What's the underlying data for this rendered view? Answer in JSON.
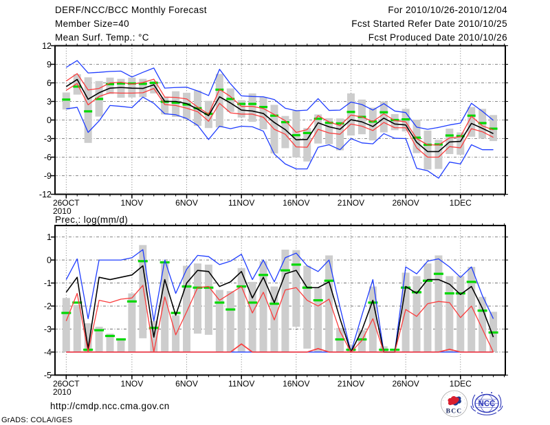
{
  "header": {
    "left": [
      "DERF/NCC/BCC Monthly Forecast",
      "Member Size=40",
      "Mean Surf. Temp.: °C"
    ],
    "right": [
      "For 2010/10/26-2010/12/04",
      "Fcst Started Refer Date 2010/10/25",
      "Fcst Produced Date 2010/10/26"
    ]
  },
  "footer": {
    "url_text": "http://cmdp.ncc.cma.gov.cn",
    "grads_credit": "GrADS: COLA/IGES",
    "logo_bcc_label": "BCC",
    "logo_ncc_label": "NCC"
  },
  "colors": {
    "blue": "#1e3cff",
    "red": "#fa3c3c",
    "green": "#00d800",
    "black": "#000000",
    "bar_gray": "#cdcdcd",
    "grid": "#606060"
  },
  "chart_data": [
    {
      "id": "temp-chart",
      "type": "line",
      "title": "Mean Surf. Temp.: °C",
      "ylim": [
        -12,
        12
      ],
      "yticks": [
        -12,
        -9,
        -6,
        -3,
        0,
        3,
        6,
        9,
        12
      ],
      "grid_yticks": [
        -9,
        -6,
        -3,
        0,
        3,
        6,
        9
      ],
      "xlabel": "",
      "ylabel": "",
      "x_days": 40,
      "xticks": [
        {
          "day": 0,
          "label": "26OCT",
          "sub": "2010"
        },
        {
          "day": 6,
          "label": "1NOV"
        },
        {
          "day": 11,
          "label": "6NOV"
        },
        {
          "day": 16,
          "label": "11NOV"
        },
        {
          "day": 21,
          "label": "16NOV"
        },
        {
          "day": 26,
          "label": "21NOV"
        },
        {
          "day": 31,
          "label": "26NOV"
        },
        {
          "day": 36,
          "label": "1DEC"
        }
      ],
      "series": [
        {
          "name": "ensemble max (blue)",
          "color": "blue",
          "width": 1.3,
          "values": [
            8.5,
            9.6,
            7.6,
            7.7,
            7.85,
            7.9,
            6.95,
            7.7,
            8.4,
            5.15,
            5.25,
            5.3,
            4.7,
            3.95,
            8.2,
            5.85,
            3.9,
            3.8,
            3.75,
            3.3,
            1.9,
            1.5,
            1.6,
            3.45,
            1.55,
            1.6,
            2.9,
            2.5,
            1.6,
            2.65,
            1.45,
            1.2,
            -1.15,
            -1.5,
            -1.2,
            -0.8,
            -0.5,
            2.7,
            1.4,
            -0.05
          ]
        },
        {
          "name": "mean+std (red)",
          "color": "red",
          "width": 1.3,
          "values": [
            6.3,
            7.5,
            4.85,
            5.1,
            6.0,
            6.1,
            5.8,
            6.05,
            6.6,
            3.7,
            3.65,
            3.4,
            2.1,
            0.95,
            4.95,
            3.8,
            2.2,
            2.2,
            1.85,
            0.9,
            -0.1,
            -2.0,
            -1.55,
            0.7,
            -0.3,
            -0.9,
            0.8,
            0.5,
            -0.25,
            1.0,
            -0.1,
            -0.3,
            -3.0,
            -4.0,
            -4.05,
            -2.9,
            -2.7,
            0.6,
            -0.95,
            -1.6
          ]
        },
        {
          "name": "ensemble mean (black)",
          "color": "black",
          "width": 1.6,
          "values": [
            5.4,
            6.55,
            3.35,
            4.4,
            5.15,
            5.25,
            5.15,
            5.1,
            5.7,
            3.0,
            3.0,
            2.65,
            1.75,
            0.7,
            3.75,
            2.75,
            1.6,
            1.45,
            1.05,
            -0.4,
            -1.55,
            -3.2,
            -3.15,
            -0.45,
            -1.1,
            -1.5,
            0.05,
            -0.3,
            -1.05,
            0.3,
            -0.65,
            -0.8,
            -3.6,
            -5.1,
            -5.1,
            -3.55,
            -3.45,
            -0.55,
            -1.35,
            -2.2
          ]
        },
        {
          "name": "mean-std (red)",
          "color": "red",
          "width": 1.3,
          "values": [
            4.8,
            5.9,
            2.45,
            3.8,
            4.4,
            4.35,
            4.35,
            4.4,
            5.1,
            2.5,
            2.35,
            1.9,
            1.35,
            -0.2,
            2.7,
            1.15,
            0.95,
            0.95,
            0.45,
            -1.5,
            -2.3,
            -4.35,
            -4.4,
            -1.5,
            -2.1,
            -2.3,
            -0.65,
            -1.0,
            -1.7,
            -0.4,
            -1.25,
            -1.25,
            -4.5,
            -6.0,
            -6.0,
            -4.3,
            -4.5,
            -1.4,
            -1.9,
            -2.8
          ]
        },
        {
          "name": "ensemble min (blue)",
          "color": "blue",
          "width": 1.3,
          "values": [
            1.8,
            2.05,
            -2.0,
            -0.15,
            2.35,
            2.2,
            2.0,
            3.7,
            2.7,
            1.0,
            0.85,
            0.25,
            -0.85,
            -3.15,
            -1.0,
            -1.4,
            -1.0,
            -1.1,
            -1.8,
            -5.5,
            -7.1,
            -7.9,
            -7.9,
            -4.4,
            -4.0,
            -4.8,
            -3.0,
            -3.7,
            -3.85,
            -2.2,
            -2.95,
            -3.0,
            -7.8,
            -8.2,
            -9.4,
            -6.8,
            -7.1,
            -4.0,
            -4.8,
            -4.8
          ]
        }
      ],
      "green_dashes": {
        "name": "daily marker (green dash)",
        "values": [
          3.3,
          5.4,
          1.4,
          3.4,
          5.8,
          5.9,
          5.9,
          5.85,
          6.0,
          2.95,
          2.8,
          2.5,
          1.9,
          1.0,
          4.9,
          3.4,
          2.6,
          2.6,
          2.1,
          0.7,
          -0.35,
          -2.45,
          -2.1,
          0.2,
          -0.45,
          -0.55,
          1.3,
          0.5,
          -0.25,
          1.25,
          0.0,
          0.1,
          -2.85,
          -4.0,
          -3.95,
          -2.5,
          -2.6,
          0.7,
          -0.5,
          -1.4
        ]
      },
      "bars": {
        "name": "ensemble spread bar (gray)",
        "top": [
          4.45,
          7.4,
          6.9,
          6.3,
          6.85,
          6.65,
          6.85,
          6.65,
          6.3,
          3.65,
          4.65,
          4.4,
          4.75,
          3.1,
          7.45,
          5.1,
          3.2,
          4.3,
          3.7,
          2.45,
          0.65,
          1.5,
          -1.3,
          0.9,
          0.3,
          0.25,
          4.3,
          3.3,
          2.0,
          3.0,
          0.95,
          1.8,
          0.05,
          -1.7,
          -3.2,
          -1.4,
          -2.0,
          2.1,
          1.8,
          0.8
        ],
        "bottom": [
          1.7,
          4.1,
          -3.7,
          0.55,
          4.2,
          3.6,
          3.65,
          3.7,
          4.3,
          0.9,
          0.5,
          0.15,
          -0.95,
          -1.3,
          -1.2,
          1.3,
          0.4,
          -0.3,
          -1.5,
          -5.4,
          -4.55,
          -6.05,
          -6.7,
          -3.8,
          -3.9,
          -4.9,
          -2.5,
          -2.3,
          -3.3,
          -2.0,
          -1.65,
          -1.85,
          -5.35,
          -8.0,
          -7.9,
          -5.5,
          -5.6,
          -2.7,
          -3.0,
          -3.4
        ]
      }
    },
    {
      "id": "prec-chart",
      "type": "line",
      "title": "Prec.: log(mm/d)",
      "ylim": [
        -5,
        1.5
      ],
      "yticks": [
        -5,
        -4,
        -3,
        -2,
        -1,
        0,
        1
      ],
      "grid_yticks": [
        -4,
        -3,
        -2,
        -1,
        0,
        1
      ],
      "xlabel": "",
      "ylabel": "",
      "x_days": 40,
      "xticks": [
        {
          "day": 0,
          "label": "26OCT",
          "sub": "2010"
        },
        {
          "day": 6,
          "label": "1NOV"
        },
        {
          "day": 11,
          "label": "6NOV"
        },
        {
          "day": 16,
          "label": "11NOV"
        },
        {
          "day": 21,
          "label": "16NOV"
        },
        {
          "day": 26,
          "label": "21NOV"
        },
        {
          "day": 31,
          "label": "26NOV"
        },
        {
          "day": 36,
          "label": "1DEC"
        }
      ],
      "base_lines": [
        {
          "name": "min baseline (blue)",
          "color": "blue",
          "width": 1.3,
          "value": -4.0
        },
        {
          "name": "min baseline (red, with bumps)",
          "color": "red",
          "width": 1.7,
          "values": [
            -4,
            -4,
            -4,
            -4,
            -4,
            -4,
            -4,
            -4,
            -4,
            -4,
            -4,
            -4,
            -4,
            -4,
            -4,
            -4,
            -3.65,
            -4,
            -4,
            -4,
            -4,
            -4,
            -4,
            -3.85,
            -4,
            -4,
            -4,
            -4,
            -4,
            -4,
            -4,
            -4,
            -4,
            -4,
            -4,
            -3.88,
            -4,
            -4,
            -4,
            -4
          ]
        }
      ],
      "series": [
        {
          "name": "ensemble max (blue)",
          "color": "blue",
          "width": 1.3,
          "values": [
            -0.85,
            0.05,
            -2.55,
            0.0,
            0.0,
            0.0,
            0.1,
            0.45,
            -2.65,
            0.0,
            -1.45,
            -0.4,
            0.2,
            0.15,
            -0.2,
            -0.05,
            0.25,
            -0.85,
            0.0,
            -0.95,
            0.1,
            0.3,
            -0.25,
            -0.5,
            0.0,
            -2.05,
            -4.0,
            -2.4,
            -0.85,
            -4.0,
            -4.0,
            -0.3,
            -0.6,
            -0.05,
            0.05,
            -0.3,
            -0.75,
            -0.3,
            -1.55,
            -2.55
          ]
        },
        {
          "name": "ensemble mean (black)",
          "color": "black",
          "width": 1.6,
          "values": [
            -1.4,
            -0.75,
            -3.85,
            -0.75,
            -0.85,
            -0.75,
            -0.65,
            -0.25,
            -3.35,
            -0.85,
            -2.4,
            -1.0,
            -0.45,
            -0.5,
            -1.15,
            -0.95,
            -0.5,
            -1.65,
            -0.75,
            -1.85,
            -0.6,
            -0.45,
            -1.2,
            -1.2,
            -0.95,
            -2.55,
            -4.0,
            -3.05,
            -1.75,
            -4.0,
            -4.0,
            -1.15,
            -1.45,
            -0.85,
            -0.85,
            -1.05,
            -1.5,
            -1.15,
            -2.1,
            -3.35
          ]
        },
        {
          "name": "mean-std (red)",
          "color": "red",
          "width": 1.3,
          "values": [
            -2.65,
            -1.45,
            -4.0,
            -1.75,
            -1.85,
            -1.7,
            -1.65,
            -1.1,
            -4.0,
            -1.6,
            -3.25,
            -2.25,
            -1.2,
            -1.15,
            -1.75,
            -1.45,
            -1.15,
            -2.3,
            -1.4,
            -2.6,
            -1.3,
            -1.2,
            -1.75,
            -2.0,
            -1.7,
            -3.1,
            -4.0,
            -3.5,
            -2.55,
            -4.0,
            -4.0,
            -2.15,
            -2.45,
            -1.9,
            -1.8,
            -1.85,
            -2.5,
            -2.0,
            -3.0,
            -4.0
          ]
        }
      ],
      "green_dashes": {
        "name": "daily marker (green dash)",
        "values": [
          -2.3,
          -1.85,
          -3.9,
          -3.05,
          -3.3,
          -3.45,
          -1.8,
          -0.05,
          -2.95,
          -0.1,
          -2.3,
          -1.15,
          -1.2,
          -1.2,
          -1.85,
          -2.15,
          -1.15,
          -1.85,
          -0.65,
          -1.9,
          -0.45,
          -0.2,
          -1.2,
          -1.75,
          -0.9,
          -3.45,
          -3.9,
          -3.45,
          -1.85,
          -3.9,
          -3.9,
          -1.2,
          -1.4,
          -0.9,
          -0.6,
          -1.45,
          -1.45,
          -0.95,
          -2.2,
          -3.15
        ]
      },
      "bars": {
        "name": "ensemble spread bar (gray)",
        "top": [
          -1.65,
          -1.95,
          -2.75,
          -2.9,
          -3.2,
          -3.4,
          -1.45,
          0.65,
          -2.65,
          -0.15,
          -2.4,
          -0.25,
          -0.15,
          -0.2,
          -1.3,
          -1.35,
          -0.35,
          -0.95,
          -0.05,
          -1.15,
          0.45,
          0.43,
          -0.25,
          -1.2,
          0.2,
          -2.95,
          -3.7,
          -3.05,
          -1.15,
          -3.75,
          -3.97,
          -0.55,
          -0.7,
          -0.15,
          0.2,
          -0.7,
          -0.7,
          -0.3,
          -1.6,
          -2.25
        ],
        "bottom": [
          -4,
          -4,
          -4,
          -4,
          -4,
          -4,
          -4,
          -3.4,
          -4,
          -4,
          -4,
          -4,
          -3.2,
          -3.25,
          -4,
          -4,
          -4,
          -4,
          -4,
          -4,
          -4,
          -2.9,
          -3.85,
          -4,
          -4,
          -4,
          -4,
          -4,
          -4,
          -4,
          -4,
          -4,
          -4,
          -4,
          -4,
          -4,
          -4,
          -4,
          -4,
          -4
        ]
      }
    }
  ]
}
